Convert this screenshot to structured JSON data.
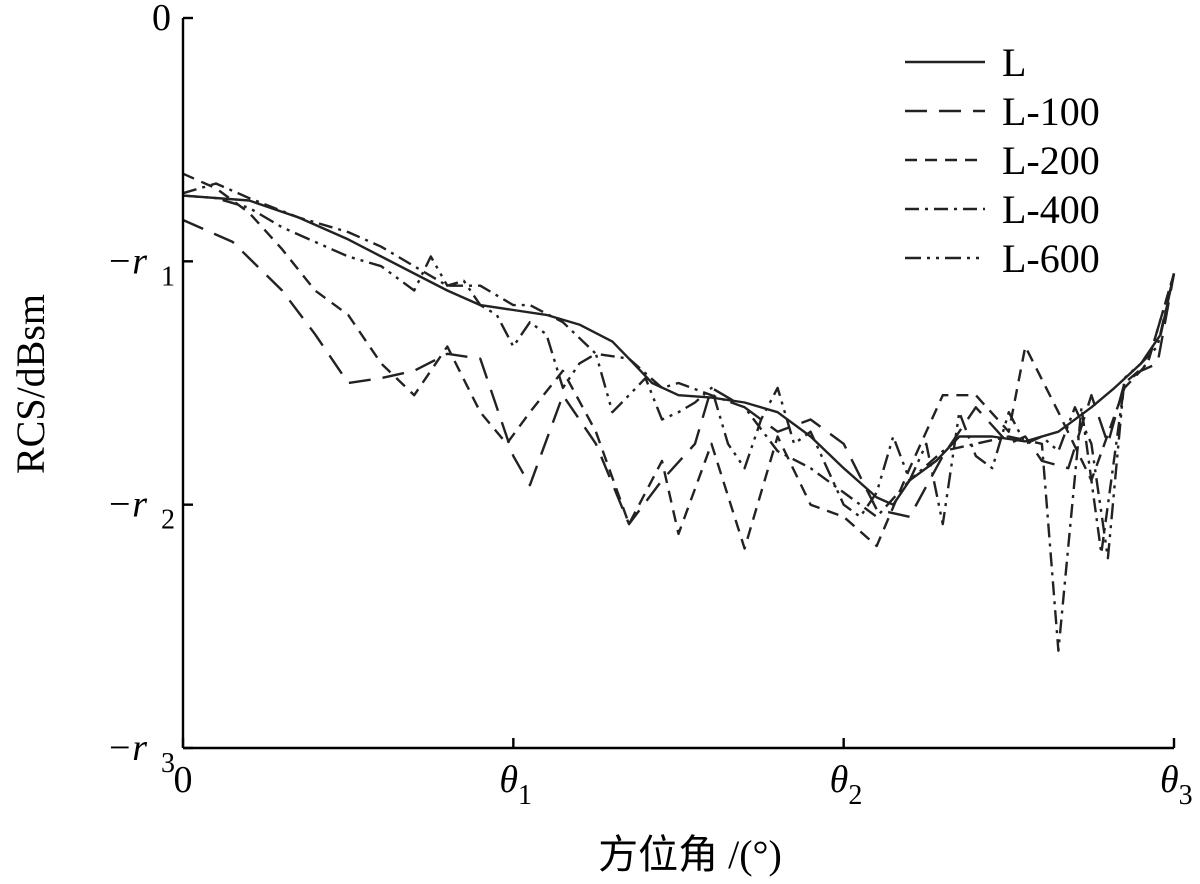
{
  "chart_data": {
    "type": "line",
    "xlabel": "方位角 /(°)",
    "ylabel": "RCS/dBsm",
    "xlim": [
      0,
      3
    ],
    "ylim": [
      -3,
      0
    ],
    "grid": false,
    "legend_position": "top-right",
    "x_ticks": [
      {
        "value": 0,
        "main": "0",
        "sub": ""
      },
      {
        "value": 1,
        "main": "θ",
        "sub": "1"
      },
      {
        "value": 2,
        "main": "θ",
        "sub": "2"
      },
      {
        "value": 3,
        "main": "θ",
        "sub": "3"
      }
    ],
    "y_ticks": [
      {
        "value": 0,
        "main": "0",
        "sub": ""
      },
      {
        "value": -1,
        "main": "−r",
        "sub": "1"
      },
      {
        "value": -2,
        "main": "−r",
        "sub": "2"
      },
      {
        "value": -3,
        "main": "−r",
        "sub": "3"
      }
    ],
    "series": [
      {
        "name": "L",
        "dash": "",
        "x": [
          0,
          0.2,
          0.35,
          0.5,
          0.6,
          0.7,
          0.8,
          0.9,
          1.0,
          1.1,
          1.2,
          1.3,
          1.35,
          1.42,
          1.5,
          1.6,
          1.7,
          1.8,
          1.9,
          2.0,
          2.1,
          2.15,
          2.2,
          2.28,
          2.35,
          2.45,
          2.55,
          2.65,
          2.75,
          2.82,
          2.9,
          2.96,
          3.0
        ],
        "y": [
          -0.73,
          -0.75,
          -0.82,
          -0.91,
          -0.98,
          -1.05,
          -1.12,
          -1.18,
          -1.2,
          -1.22,
          -1.26,
          -1.33,
          -1.4,
          -1.5,
          -1.55,
          -1.56,
          -1.58,
          -1.62,
          -1.72,
          -1.85,
          -1.97,
          -2.0,
          -1.9,
          -1.82,
          -1.72,
          -1.72,
          -1.74,
          -1.7,
          -1.6,
          -1.52,
          -1.42,
          -1.3,
          -1.05
        ]
      },
      {
        "name": "L-100",
        "dash": "22,12",
        "x": [
          0,
          0.15,
          0.3,
          0.4,
          0.5,
          0.6,
          0.7,
          0.8,
          0.9,
          1.0,
          1.05,
          1.15,
          1.25,
          1.35,
          1.45,
          1.55,
          1.6,
          1.7,
          1.8,
          1.9,
          2.0,
          2.1,
          2.2,
          2.3,
          2.4,
          2.5,
          2.55,
          2.6,
          2.68,
          2.75,
          2.8,
          2.85,
          2.9,
          2.95,
          3.0
        ],
        "y": [
          -0.83,
          -0.92,
          -1.12,
          -1.3,
          -1.5,
          -1.48,
          -1.45,
          -1.38,
          -1.4,
          -1.8,
          -1.92,
          -1.55,
          -1.75,
          -2.08,
          -1.9,
          -1.75,
          -1.52,
          -1.6,
          -1.7,
          -1.65,
          -1.75,
          -2.02,
          -2.05,
          -1.8,
          -1.6,
          -1.75,
          -1.72,
          -1.82,
          -1.85,
          -1.55,
          -1.75,
          -1.5,
          -1.45,
          -1.42,
          -1.05
        ]
      },
      {
        "name": "L-200",
        "dash": "12,8",
        "x": [
          0,
          0.1,
          0.2,
          0.3,
          0.4,
          0.5,
          0.6,
          0.7,
          0.8,
          0.9,
          0.98,
          1.05,
          1.15,
          1.25,
          1.35,
          1.45,
          1.5,
          1.6,
          1.7,
          1.8,
          1.9,
          2.0,
          2.1,
          2.2,
          2.3,
          2.4,
          2.5,
          2.55,
          2.65,
          2.75,
          2.85,
          2.92,
          3.0
        ],
        "y": [
          -0.64,
          -0.7,
          -0.8,
          -0.95,
          -1.12,
          -1.22,
          -1.42,
          -1.55,
          -1.35,
          -1.62,
          -1.75,
          -1.62,
          -1.45,
          -1.7,
          -2.08,
          -1.82,
          -2.12,
          -1.75,
          -2.18,
          -1.72,
          -2.0,
          -2.05,
          -2.17,
          -1.85,
          -1.55,
          -1.55,
          -1.7,
          -1.35,
          -1.62,
          -1.9,
          -1.52,
          -1.42,
          -1.05
        ]
      },
      {
        "name": "L-400",
        "dash": "14,6,3,6",
        "x": [
          0,
          0.1,
          0.2,
          0.35,
          0.5,
          0.6,
          0.7,
          0.8,
          0.9,
          1.0,
          1.05,
          1.15,
          1.25,
          1.35,
          1.45,
          1.5,
          1.6,
          1.7,
          1.8,
          1.9,
          2.0,
          2.1,
          2.2,
          2.3,
          2.4,
          2.5,
          2.6,
          2.65,
          2.72,
          2.78,
          2.85,
          2.92,
          3.0
        ],
        "y": [
          -0.72,
          -0.68,
          -0.74,
          -0.82,
          -0.88,
          -0.94,
          -1.02,
          -1.1,
          -1.1,
          -1.18,
          -1.18,
          -1.25,
          -1.38,
          -1.4,
          -1.52,
          -1.5,
          -1.55,
          -1.6,
          -1.78,
          -1.85,
          -1.95,
          -2.05,
          -1.9,
          -1.78,
          -1.75,
          -1.72,
          -1.75,
          -2.6,
          -1.6,
          -2.2,
          -1.5,
          -1.42,
          -1.05
        ]
      },
      {
        "name": "L-600",
        "dash": "16,6,3,6,3,6",
        "x": [
          0,
          0.1,
          0.2,
          0.3,
          0.4,
          0.5,
          0.6,
          0.7,
          0.75,
          0.8,
          0.85,
          0.9,
          0.95,
          1.0,
          1.05,
          1.1,
          1.15,
          1.2,
          1.25,
          1.3,
          1.35,
          1.4,
          1.45,
          1.5,
          1.55,
          1.6,
          1.65,
          1.7,
          1.75,
          1.8,
          1.85,
          1.9,
          1.95,
          2.0,
          2.05,
          2.1,
          2.15,
          2.2,
          2.25,
          2.3,
          2.35,
          2.4,
          2.45,
          2.5,
          2.55,
          2.6,
          2.65,
          2.7,
          2.75,
          2.8,
          2.85,
          2.9,
          2.95,
          3.0
        ],
        "y": [
          -0.73,
          -0.74,
          -0.78,
          -0.86,
          -0.92,
          -0.98,
          -1.02,
          -1.12,
          -0.98,
          -1.1,
          -1.08,
          -1.18,
          -1.22,
          -1.35,
          -1.25,
          -1.3,
          -1.52,
          -1.42,
          -1.38,
          -1.62,
          -1.55,
          -1.48,
          -1.65,
          -1.62,
          -1.58,
          -1.52,
          -1.75,
          -1.85,
          -1.65,
          -1.52,
          -1.75,
          -1.7,
          -1.85,
          -2.0,
          -2.05,
          -1.95,
          -1.72,
          -1.9,
          -1.75,
          -2.08,
          -1.62,
          -1.8,
          -1.85,
          -1.62,
          -1.75,
          -1.72,
          -1.78,
          -1.6,
          -1.75,
          -2.22,
          -1.48,
          -1.42,
          -1.35,
          -1.05
        ]
      }
    ]
  }
}
